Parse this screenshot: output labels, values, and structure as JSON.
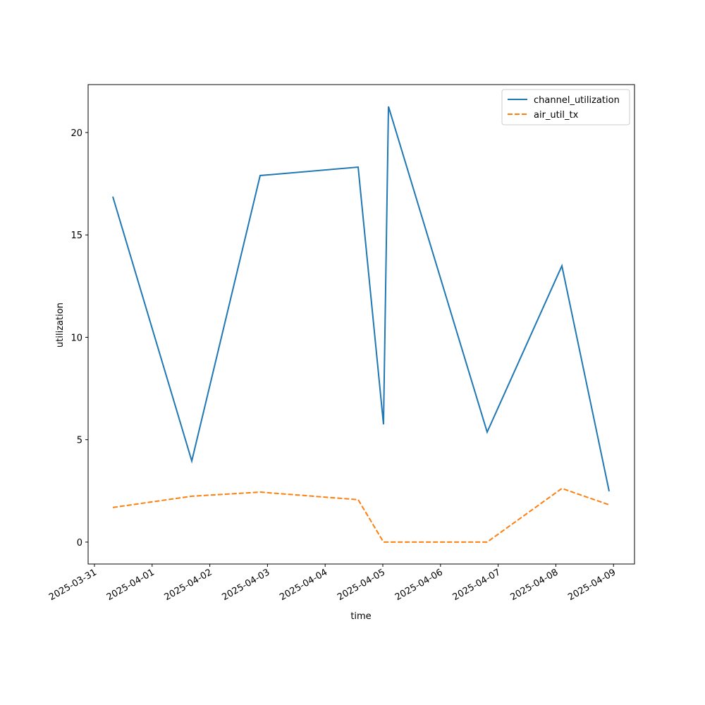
{
  "chart_data": {
    "type": "line",
    "xlabel": "time",
    "ylabel": "utilization",
    "x": [
      "2025-03-31T07:38",
      "2025-04-01T16:30",
      "2025-04-02T20:57",
      "2025-04-04T13:44",
      "2025-04-05T00:17",
      "2025-04-05T02:21",
      "2025-04-06T19:25",
      "2025-04-08T02:31",
      "2025-04-08T22:11"
    ],
    "series": [
      {
        "name": "channel_utilization",
        "color": "#1f77b4",
        "dash": "solid",
        "values": [
          16.87,
          3.96,
          17.9,
          18.31,
          5.75,
          21.27,
          5.37,
          13.49,
          2.48
        ]
      },
      {
        "name": "air_util_tx",
        "color": "#ff7f0e",
        "dash": "dashed",
        "values": [
          1.69,
          2.24,
          2.44,
          2.07,
          0,
          0,
          0,
          2.62,
          1.82
        ]
      }
    ],
    "xlim": [
      "2025-03-30T21:22",
      "2025-04-09T08:44"
    ],
    "xticks": [
      "2025-03-31",
      "2025-04-01",
      "2025-04-02",
      "2025-04-03",
      "2025-04-04",
      "2025-04-05",
      "2025-04-06",
      "2025-04-07",
      "2025-04-08",
      "2025-04-09"
    ],
    "ylim": [
      -1.07,
      22.34
    ],
    "yticks": [
      0,
      5,
      10,
      15,
      20
    ],
    "legend": "upper right"
  }
}
